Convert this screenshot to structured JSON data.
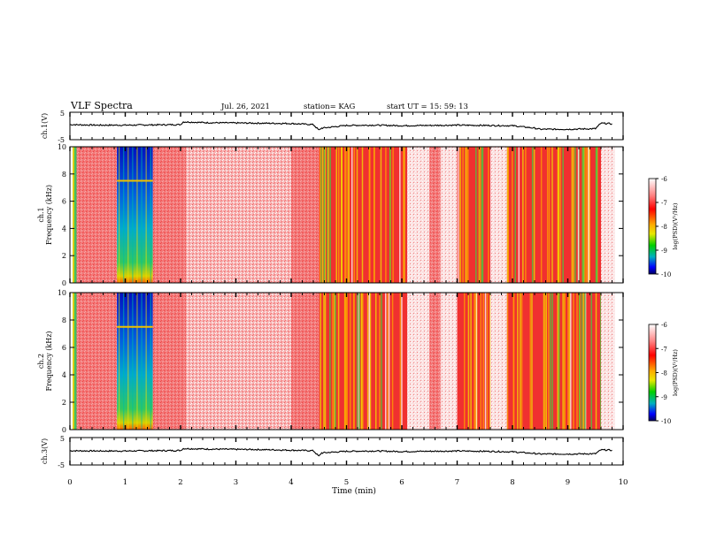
{
  "header": {
    "title": "VLF Spectra",
    "date": "Jul. 26, 2021",
    "station": "station= KAG",
    "start_ut": "start  UT =   15: 59: 13"
  },
  "chart_data": [
    {
      "id": "ch1-waveform",
      "type": "line",
      "ylabel": "ch.1(V)",
      "yticks": [
        "5",
        "-5"
      ],
      "ylim": [
        -5,
        5
      ],
      "x": [
        0,
        0.5,
        1,
        1.5,
        2,
        2.05,
        2.5,
        3,
        3.5,
        4,
        4.4,
        4.5,
        4.55,
        5,
        5.5,
        6,
        6.5,
        7,
        7.5,
        8,
        8.4,
        8.5,
        9,
        9.5,
        9.6,
        9.8
      ],
      "y": [
        0.5,
        0.3,
        0.3,
        0.4,
        0.5,
        1.5,
        1.2,
        1.1,
        1.0,
        0.9,
        0.5,
        -1.5,
        -0.8,
        0.2,
        0.3,
        0.1,
        0.2,
        0.3,
        0.2,
        0.1,
        -0.8,
        -1.2,
        -1.2,
        -1.0,
        1.0,
        0.8
      ]
    },
    {
      "id": "ch1-spectrogram",
      "type": "heatmap",
      "ylabel_line1": "ch.1",
      "ylabel_line2": "Frequency (kHz)",
      "yticks": [
        "0",
        "2",
        "4",
        "6",
        "8",
        "10"
      ],
      "ylim": [
        0,
        10
      ],
      "xlim": [
        0,
        10
      ],
      "colorbar": {
        "label": "log(PSD)(V²/Hz)",
        "ticks": [
          "-6",
          "-7",
          "-8",
          "-9",
          "-10"
        ],
        "range": [
          -10,
          -6
        ]
      },
      "segments": [
        {
          "x0": 0.0,
          "x1": 0.05,
          "level": "lo"
        },
        {
          "x0": 0.05,
          "x1": 0.12,
          "level": "green"
        },
        {
          "x0": 0.12,
          "x1": 0.75,
          "level": "red"
        },
        {
          "x0": 0.75,
          "x1": 0.85,
          "level": "red"
        },
        {
          "x0": 0.85,
          "x1": 1.5,
          "level": "blue"
        },
        {
          "x0": 1.5,
          "x1": 2.1,
          "level": "red"
        },
        {
          "x0": 2.1,
          "x1": 4.0,
          "level": "pink"
        },
        {
          "x0": 4.0,
          "x1": 4.5,
          "level": "red"
        },
        {
          "x0": 4.5,
          "x1": 6.1,
          "level": "mixed"
        },
        {
          "x0": 6.1,
          "x1": 6.5,
          "level": "faint"
        },
        {
          "x0": 6.5,
          "x1": 6.7,
          "level": "red"
        },
        {
          "x0": 6.7,
          "x1": 7.0,
          "level": "faint"
        },
        {
          "x0": 7.0,
          "x1": 7.6,
          "level": "mixed"
        },
        {
          "x0": 7.6,
          "x1": 7.9,
          "level": "faint"
        },
        {
          "x0": 7.9,
          "x1": 9.6,
          "level": "mixed"
        },
        {
          "x0": 9.6,
          "x1": 9.85,
          "level": "faint"
        }
      ]
    },
    {
      "id": "ch2-spectrogram",
      "type": "heatmap",
      "ylabel_line1": "ch.2",
      "ylabel_line2": "Frequency (kHz)",
      "yticks": [
        "0",
        "2",
        "4",
        "6",
        "8",
        "10"
      ],
      "ylim": [
        0,
        10
      ],
      "xlim": [
        0,
        10
      ],
      "colorbar": {
        "label": "log(PSD)(V²/Hz)",
        "ticks": [
          "-6",
          "-7",
          "-8",
          "-9",
          "-10"
        ],
        "range": [
          -10,
          -6
        ]
      }
    },
    {
      "id": "ch3-waveform",
      "type": "line",
      "ylabel": "ch.3(V)",
      "yticks": [
        "5",
        "-5"
      ],
      "ylim": [
        -5,
        5
      ],
      "x": [
        0,
        0.5,
        1,
        1.5,
        2,
        2.05,
        2.5,
        3,
        3.5,
        4,
        4.4,
        4.5,
        4.55,
        5,
        5.5,
        6,
        6.5,
        7,
        7.5,
        8,
        8.4,
        8.5,
        9,
        9.5,
        9.6,
        9.8
      ],
      "y": [
        0.2,
        0.1,
        0.1,
        0.2,
        0.3,
        1.0,
        0.8,
        0.7,
        0.6,
        0.4,
        0.2,
        -1.8,
        -0.6,
        0.0,
        0.1,
        -0.1,
        0.0,
        0.1,
        0.0,
        -0.2,
        -0.8,
        -1.0,
        -1.0,
        -0.9,
        0.5,
        0.4
      ]
    }
  ],
  "xaxis": {
    "label": "Time (min)",
    "ticks": [
      "0",
      "1",
      "2",
      "3",
      "4",
      "5",
      "6",
      "7",
      "8",
      "9",
      "10"
    ],
    "xlim": [
      0,
      10
    ]
  }
}
